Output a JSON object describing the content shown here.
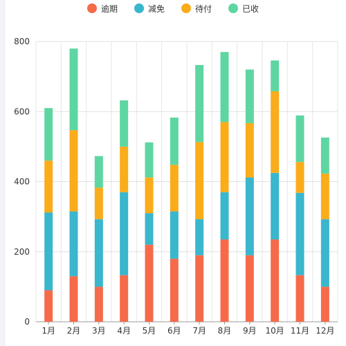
{
  "chart_data": {
    "type": "bar",
    "stacked": true,
    "categories": [
      "1月",
      "2月",
      "3月",
      "4月",
      "5月",
      "6月",
      "7月",
      "8月",
      "9月",
      "10月",
      "11月",
      "12月"
    ],
    "series": [
      {
        "name": "逾期",
        "color": "#f56b4a",
        "values": [
          90,
          130,
          100,
          133,
          220,
          180,
          190,
          235,
          190,
          235,
          133,
          100
        ]
      },
      {
        "name": "减免",
        "color": "#3ab6cd",
        "values": [
          222,
          185,
          193,
          237,
          90,
          135,
          103,
          135,
          222,
          190,
          235,
          193
        ]
      },
      {
        "name": "待付",
        "color": "#fbac1b",
        "values": [
          148,
          232,
          90,
          130,
          102,
          133,
          220,
          200,
          155,
          233,
          88,
          130
        ]
      },
      {
        "name": "已收",
        "color": "#5ed6a2",
        "values": [
          150,
          233,
          90,
          132,
          100,
          135,
          220,
          200,
          153,
          88,
          133,
          103
        ]
      }
    ],
    "ylim": [
      0,
      800
    ],
    "yticks": [
      0,
      200,
      400,
      600,
      800
    ],
    "grid": true,
    "legend_position": "top-center"
  }
}
